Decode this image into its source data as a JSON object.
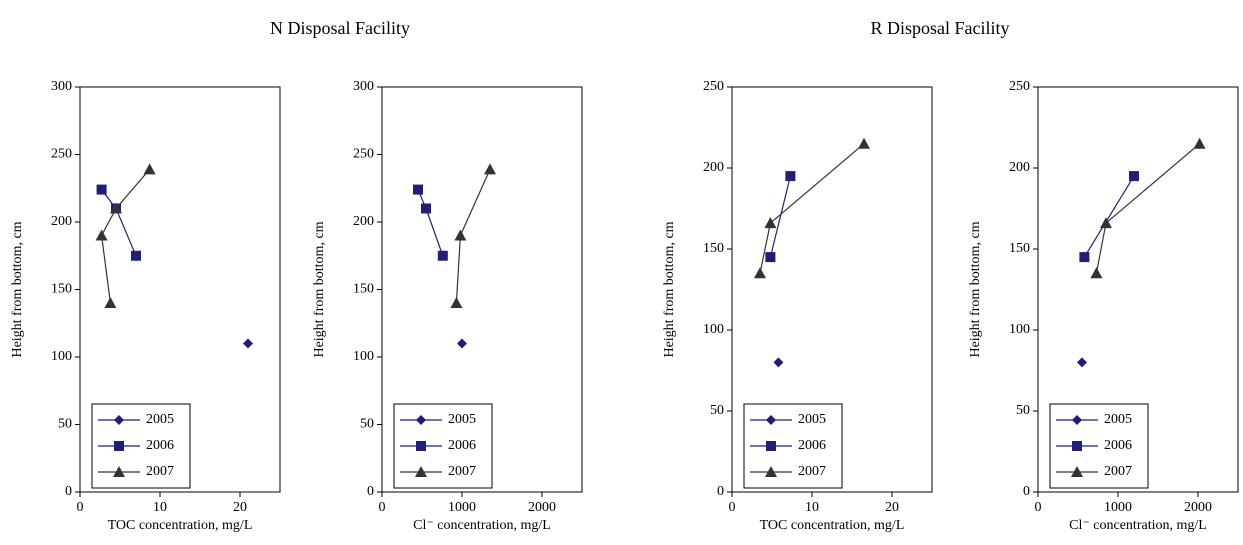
{
  "group_titles": [
    "N Disposal Facility",
    "R Disposal Facility"
  ],
  "chart_data": [
    {
      "type": "line",
      "xlabel": "TOC concentration, mg/L",
      "ylabel": "Height from bottom, cm",
      "xlim": [
        0,
        25
      ],
      "xticks": [
        0,
        10,
        20
      ],
      "ylim": [
        0,
        300
      ],
      "yticks": [
        0,
        50,
        100,
        150,
        200,
        250,
        300
      ],
      "legend": "lower left",
      "series": [
        {
          "name": "2005",
          "color": "#1f1f7a",
          "marker": "diamond",
          "x": [
            21
          ],
          "values": [
            110
          ]
        },
        {
          "name": "2006",
          "color": "#1f1f7a",
          "marker": "square",
          "x": [
            2.7,
            4.5,
            7
          ],
          "values": [
            224,
            210,
            175
          ]
        },
        {
          "name": "2007",
          "color": "#333333",
          "marker": "triangle",
          "x": [
            8.7,
            4.5,
            2.7,
            3.8
          ],
          "values": [
            239,
            210,
            190,
            140
          ]
        }
      ]
    },
    {
      "type": "line",
      "xlabel": "Cl⁻ concentration, mg/L",
      "ylabel": "Height from bottom, cm",
      "xlim": [
        0,
        2500
      ],
      "xticks": [
        0,
        1000,
        2000
      ],
      "ylim": [
        0,
        300
      ],
      "yticks": [
        0,
        50,
        100,
        150,
        200,
        250,
        300
      ],
      "legend": "lower left",
      "series": [
        {
          "name": "2005",
          "color": "#1f1f7a",
          "marker": "diamond",
          "x": [
            1000
          ],
          "values": [
            110
          ]
        },
        {
          "name": "2006",
          "color": "#1f1f7a",
          "marker": "square",
          "x": [
            450,
            550,
            760
          ],
          "values": [
            224,
            210,
            175
          ]
        },
        {
          "name": "2007",
          "color": "#333333",
          "marker": "triangle",
          "x": [
            1350,
            980,
            930
          ],
          "values": [
            239,
            190,
            140
          ]
        }
      ]
    },
    {
      "type": "line",
      "xlabel": "TOC concentration, mg/L",
      "ylabel": "Height from bottom, cm",
      "xlim": [
        0,
        25
      ],
      "xticks": [
        0,
        10,
        20
      ],
      "ylim": [
        0,
        250
      ],
      "yticks": [
        0,
        50,
        100,
        150,
        200,
        250
      ],
      "legend": "lower left",
      "series": [
        {
          "name": "2005",
          "color": "#1f1f7a",
          "marker": "diamond",
          "x": [
            5.8
          ],
          "values": [
            80
          ]
        },
        {
          "name": "2006",
          "color": "#1f1f7a",
          "marker": "square",
          "x": [
            7.3,
            4.8
          ],
          "values": [
            195,
            145
          ]
        },
        {
          "name": "2007",
          "color": "#333333",
          "marker": "triangle",
          "x": [
            16.5,
            4.8,
            3.5
          ],
          "values": [
            215,
            166,
            135
          ]
        }
      ]
    },
    {
      "type": "line",
      "xlabel": "Cl⁻ concentration, mg/L",
      "ylabel": "Height from bottom, cm",
      "xlim": [
        0,
        2500
      ],
      "xticks": [
        0,
        1000,
        2000
      ],
      "ylim": [
        0,
        250
      ],
      "yticks": [
        0,
        50,
        100,
        150,
        200,
        250
      ],
      "legend": "lower left",
      "series": [
        {
          "name": "2005",
          "color": "#1f1f7a",
          "marker": "diamond",
          "x": [
            550
          ],
          "values": [
            80
          ]
        },
        {
          "name": "2006",
          "color": "#1f1f7a",
          "marker": "square",
          "x": [
            1200,
            580
          ],
          "values": [
            195,
            145
          ]
        },
        {
          "name": "2007",
          "color": "#333333",
          "marker": "triangle",
          "x": [
            2020,
            850,
            730
          ],
          "values": [
            215,
            166,
            135
          ]
        }
      ]
    }
  ]
}
